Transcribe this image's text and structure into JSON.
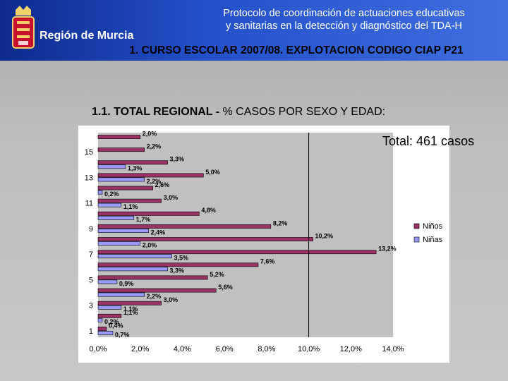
{
  "header": {
    "brand": "Región de Murcia",
    "line1": "Protocolo de coordinación de actuaciones educativas",
    "line2": "y sanitarias en la detección y diagnóstico del TDA-H",
    "subtitle": "1. CURSO ESCOLAR 2007/08. EXPLOTACION CODIGO CIAP P21"
  },
  "section": {
    "title_bold": "1.1. TOTAL REGIONAL -",
    "title_rest": " % CASOS POR SEXO Y EDAD:"
  },
  "chart_data": {
    "type": "bar",
    "orientation": "horizontal",
    "categories": [
      "1",
      "2",
      "3",
      "4",
      "5",
      "6",
      "7",
      "8",
      "9",
      "10",
      "11",
      "12",
      "13",
      "14",
      "15",
      "16"
    ],
    "category_labels_shown": [
      "1",
      "3",
      "5",
      "7",
      "9",
      "11",
      "13",
      "15"
    ],
    "series": [
      {
        "name": "Niños",
        "color": "#993366",
        "values": [
          0.4,
          1.1,
          3.0,
          5.6,
          5.2,
          7.6,
          13.2,
          10.2,
          8.2,
          4.8,
          3.0,
          2.6,
          5.0,
          3.3,
          2.2,
          2.0
        ],
        "labels": [
          "0,4%",
          "1,1%",
          "3,0%",
          "5,6%",
          "5,2%",
          "7,6%",
          "13,2%",
          "10,2%",
          "8,2%",
          "4,8%",
          "3,0%",
          "2,6%",
          "5,0%",
          "3,3%",
          "2,2%",
          "2,0%"
        ]
      },
      {
        "name": "Niñas",
        "color": "#9999ff",
        "values": [
          0.7,
          0.2,
          1.1,
          2.2,
          0.9,
          3.3,
          3.5,
          2.0,
          2.4,
          1.7,
          1.1,
          0.2,
          2.2,
          1.3,
          null,
          null
        ],
        "labels": [
          "0,7%",
          "0,2%",
          "1,1%",
          "2,2%",
          "0,9%",
          "3,3%",
          "3,5%",
          "2,0%",
          "2,4%",
          "1,7%",
          "1,1%",
          "0,2%",
          "2,2%",
          "1,3%",
          "",
          ""
        ]
      }
    ],
    "xlim": [
      0,
      14
    ],
    "x_ticks": [
      "0,0%",
      "2,0%",
      "4,0%",
      "6,0%",
      "8,0%",
      "10,0%",
      "12,0%",
      "14,0%"
    ],
    "reference_line": 10,
    "annotation": "Total: 461 casos",
    "legend_position": "right",
    "grid": false
  }
}
